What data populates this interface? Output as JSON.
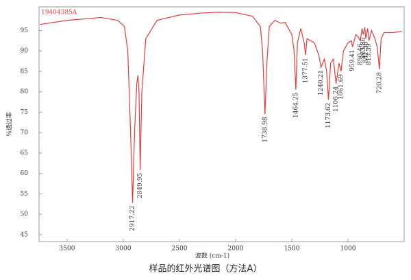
{
  "chart_data": {
    "type": "line",
    "title": "19404385A",
    "y_label": "%透过率",
    "x_label": "波数 (cm-1)",
    "caption": "样品的红外光谱图（方法A）",
    "xlim": [
      3750,
      500
    ],
    "ylim": [
      43.3,
      100.8
    ],
    "xticks": [
      3500,
      3000,
      2500,
      2000,
      1500,
      1000
    ],
    "yticks": [
      45,
      50,
      55,
      60,
      65,
      70,
      75,
      80,
      85,
      90,
      95
    ],
    "grid": false,
    "series": [
      {
        "color": "#e83a3a",
        "x": [
          3740,
          3500,
          3200,
          3050,
          2990,
          2960,
          2935,
          2917.22,
          2900,
          2880,
          2870,
          2860,
          2849.95,
          2835,
          2800,
          2700,
          2500,
          2300,
          2150,
          2000,
          1850,
          1780,
          1760,
          1738.98,
          1720,
          1700,
          1650,
          1600,
          1560,
          1500,
          1480,
          1464.25,
          1450,
          1420,
          1390,
          1377.51,
          1365,
          1300,
          1260,
          1240.21,
          1210,
          1190,
          1173.62,
          1155,
          1130,
          1106.24,
          1080,
          1061.69,
          1040,
          1000,
          970,
          959.41,
          930,
          910,
          890.46,
          875,
          863.86,
          850,
          841.36,
          825,
          813.39,
          790,
          760,
          740,
          720.28,
          705,
          680,
          600,
          520
        ],
        "values": [
          96.5,
          97.5,
          98.2,
          97.5,
          96,
          90,
          70,
          52.8,
          70,
          82,
          84,
          80,
          60.8,
          80,
          93,
          97.5,
          98.8,
          99.3,
          99.5,
          99.4,
          98.5,
          96,
          90,
          74.5,
          88,
          96,
          97.5,
          96.8,
          97,
          94,
          90,
          80.5,
          92,
          95.5,
          92,
          89,
          93,
          92,
          89,
          86,
          88,
          85,
          78,
          87,
          88,
          82,
          87,
          85,
          90,
          92,
          92.5,
          91,
          94,
          93.5,
          92.5,
          95.5,
          94,
          95.8,
          93,
          95.5,
          92.5,
          95,
          93,
          91,
          85.5,
          93,
          94.5,
          94.5,
          94.8
        ]
      }
    ],
    "annotations": [
      {
        "x": 2917.22,
        "y": 52.8
      },
      {
        "x": 2849.95,
        "y": 60.8
      },
      {
        "x": 1738.98,
        "y": 74.5
      },
      {
        "x": 1464.25,
        "y": 80.5
      },
      {
        "x": 1377.51,
        "y": 89
      },
      {
        "x": 1240.21,
        "y": 86
      },
      {
        "x": 1173.62,
        "y": 78
      },
      {
        "x": 1106.24,
        "y": 82
      },
      {
        "x": 1061.69,
        "y": 85
      },
      {
        "x": 959.41,
        "y": 91
      },
      {
        "x": 890.46,
        "y": 92.5
      },
      {
        "x": 863.86,
        "y": 94
      },
      {
        "x": 841.36,
        "y": 93
      },
      {
        "x": 813.39,
        "y": 92.5
      },
      {
        "x": 720.28,
        "y": 85.5
      }
    ]
  }
}
